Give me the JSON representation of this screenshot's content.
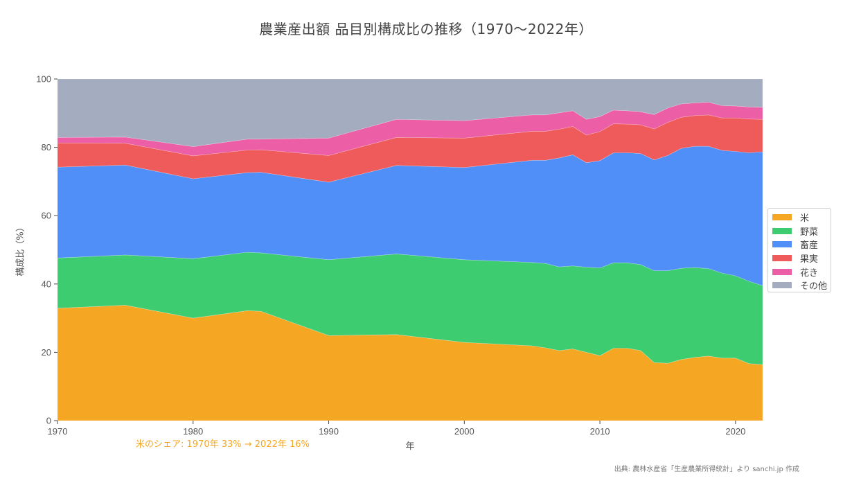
{
  "title": "農業産出額 品目別構成比の推移（1970〜2022年）",
  "axes": {
    "xlabel": "年",
    "ylabel": "構成比（%）",
    "xticks": [
      1970,
      1980,
      1990,
      2000,
      2010,
      2020
    ],
    "yticks": [
      0,
      20,
      40,
      60,
      80,
      100
    ]
  },
  "annotation": "米のシェア: 1970年 33% → 2022年 16%",
  "source": "出典: 農林水産省「生産農業所得統計」より sanchi.jp 作成",
  "legend": {
    "items": [
      {
        "label": "米",
        "color": "#f5a623"
      },
      {
        "label": "野菜",
        "color": "#3ecc71"
      },
      {
        "label": "畜産",
        "color": "#4f8ff7"
      },
      {
        "label": "果実",
        "color": "#ef5a5a"
      },
      {
        "label": "花き",
        "color": "#ec5ea5"
      },
      {
        "label": "その他",
        "color": "#a3adbf"
      }
    ]
  },
  "chart_data": {
    "type": "area",
    "stacked": true,
    "title": "農業産出額 品目別構成比の推移（1970〜2022年）",
    "xlabel": "年",
    "ylabel": "構成比（%）",
    "xlim": [
      1970,
      2022
    ],
    "ylim": [
      0,
      100
    ],
    "grid": false,
    "legend_position": "right",
    "x": [
      1970,
      1975,
      1980,
      1984,
      1985,
      1990,
      1995,
      2000,
      2005,
      2006,
      2007,
      2008,
      2009,
      2010,
      2011,
      2012,
      2013,
      2014,
      2015,
      2016,
      2017,
      2018,
      2019,
      2020,
      2021,
      2022
    ],
    "series": [
      {
        "name": "米",
        "color": "#f5a623",
        "values": [
          32.9,
          33.8,
          30.0,
          32.2,
          32.0,
          24.9,
          25.2,
          22.9,
          21.9,
          21.3,
          20.5,
          21.0,
          20.0,
          19.0,
          21.2,
          21.2,
          20.5,
          17.0,
          16.8,
          17.9,
          18.5,
          18.9,
          18.3,
          18.3,
          16.7,
          16.4
        ]
      },
      {
        "name": "野菜",
        "color": "#3ecc71",
        "values": [
          14.7,
          14.7,
          17.4,
          17.1,
          17.1,
          22.2,
          23.6,
          24.2,
          24.4,
          24.7,
          24.5,
          24.3,
          24.9,
          25.7,
          25.0,
          25.0,
          25.2,
          26.9,
          27.1,
          26.7,
          26.3,
          25.6,
          24.9,
          24.1,
          24.1,
          23.1
        ]
      },
      {
        "name": "畜産",
        "color": "#4f8ff7",
        "values": [
          26.6,
          26.3,
          23.4,
          23.3,
          23.6,
          22.7,
          25.9,
          27.0,
          29.9,
          30.2,
          31.9,
          32.5,
          30.6,
          31.4,
          32.2,
          32.2,
          32.5,
          32.4,
          33.7,
          35.1,
          35.5,
          35.8,
          35.9,
          36.4,
          37.6,
          39.2
        ]
      },
      {
        "name": "果実",
        "color": "#ef5a5a",
        "values": [
          7.1,
          6.4,
          6.7,
          6.6,
          6.6,
          7.8,
          8.2,
          8.6,
          8.5,
          8.5,
          8.4,
          8.3,
          8.1,
          8.5,
          8.5,
          8.4,
          8.4,
          9.1,
          9.7,
          9.1,
          9.0,
          9.2,
          9.5,
          9.8,
          9.9,
          9.5
        ]
      },
      {
        "name": "花き",
        "color": "#ec5ea5",
        "values": [
          1.6,
          1.8,
          2.7,
          3.2,
          3.1,
          5.1,
          5.3,
          5.1,
          4.8,
          4.8,
          4.8,
          4.6,
          4.6,
          4.4,
          4.0,
          3.9,
          3.8,
          4.2,
          4.2,
          3.9,
          3.7,
          3.7,
          3.6,
          3.5,
          3.5,
          3.5
        ]
      },
      {
        "name": "その他",
        "color": "#a3adbf",
        "values": [
          17.1,
          17.0,
          19.8,
          17.6,
          17.6,
          17.3,
          11.8,
          12.2,
          10.5,
          10.5,
          9.9,
          9.3,
          11.8,
          11.0,
          9.1,
          9.3,
          9.6,
          10.4,
          8.5,
          7.3,
          7.0,
          6.8,
          7.8,
          7.9,
          8.2,
          8.3
        ]
      }
    ],
    "annotations": [
      "米のシェア: 1970年 33% → 2022年 16%"
    ]
  }
}
